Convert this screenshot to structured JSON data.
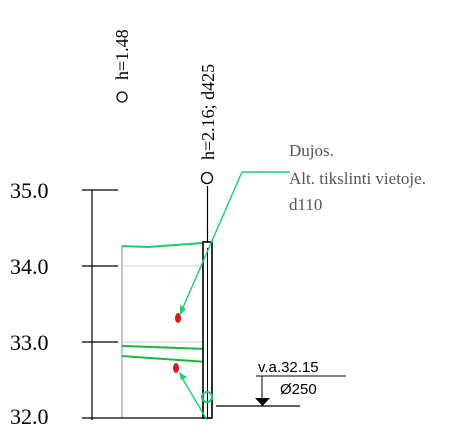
{
  "profile": {
    "elevation_ticks": [
      "35.0",
      "34.0",
      "33.0",
      "32.0"
    ],
    "labels": {
      "left_point": "h=1.48",
      "right_point": "h=2.16; d425"
    },
    "callout": {
      "line1": "Dujos.",
      "line2": "Alt. tikslinti vietoje.",
      "line3": "d110"
    },
    "pipe_mark": {
      "elevation": "v.a.32.15",
      "diameter": "Ø250"
    }
  },
  "colors": {
    "accent_green": "#1fcc6a",
    "gas_red": "#d81c1c",
    "axis": "#000000"
  }
}
